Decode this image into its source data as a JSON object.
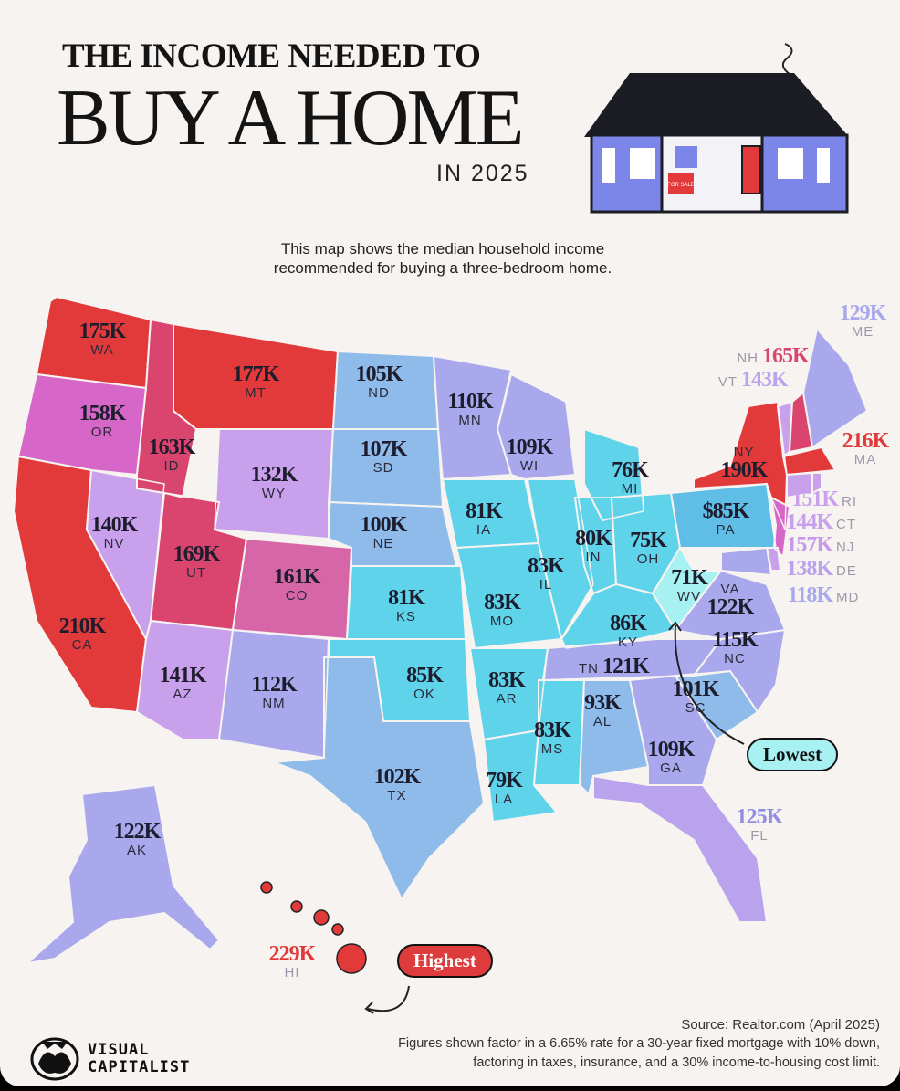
{
  "header": {
    "title_line1": "THE INCOME NEEDED TO",
    "title_line2": "BUY A HOME",
    "title_line3": "IN 2025",
    "sign_text": "FOR SALE"
  },
  "subtitle": "This map shows the median household income recommended for buying a three-bedroom home.",
  "legend_colors": {
    "highest": "#e23a3a",
    "high": "#d9456f",
    "upper_mid": "#d766c9",
    "mid": "#c9a0ec",
    "lower_mid": "#a9a8ec",
    "low": "#8fbbea",
    "lower": "#5fd3ea",
    "lowest": "#a8f1f3"
  },
  "states": [
    {
      "abbr": "WA",
      "value": "175K",
      "color": "#e23a3a"
    },
    {
      "abbr": "OR",
      "value": "158K",
      "color": "#d766c9"
    },
    {
      "abbr": "CA",
      "value": "210K",
      "color": "#e23a3a"
    },
    {
      "abbr": "NV",
      "value": "140K",
      "color": "#c9a0ec"
    },
    {
      "abbr": "ID",
      "value": "163K",
      "color": "#d9456f"
    },
    {
      "abbr": "MT",
      "value": "177K",
      "color": "#e23a3a"
    },
    {
      "abbr": "WY",
      "value": "132K",
      "color": "#c9a0ec"
    },
    {
      "abbr": "UT",
      "value": "169K",
      "color": "#d9456f"
    },
    {
      "abbr": "CO",
      "value": "161K",
      "color": "#d766a9"
    },
    {
      "abbr": "AZ",
      "value": "141K",
      "color": "#c9a0ec"
    },
    {
      "abbr": "NM",
      "value": "112K",
      "color": "#a9a8ec"
    },
    {
      "abbr": "ND",
      "value": "105K",
      "color": "#8fbbea"
    },
    {
      "abbr": "SD",
      "value": "107K",
      "color": "#8fbbea"
    },
    {
      "abbr": "NE",
      "value": "100K",
      "color": "#8fbbea"
    },
    {
      "abbr": "KS",
      "value": "81K",
      "color": "#5fd3ea"
    },
    {
      "abbr": "OK",
      "value": "85K",
      "color": "#5fd3ea"
    },
    {
      "abbr": "TX",
      "value": "102K",
      "color": "#8fbbea"
    },
    {
      "abbr": "MN",
      "value": "110K",
      "color": "#a9a8ec"
    },
    {
      "abbr": "IA",
      "value": "81K",
      "color": "#5fd3ea"
    },
    {
      "abbr": "MO",
      "value": "83K",
      "color": "#5fd3ea"
    },
    {
      "abbr": "AR",
      "value": "83K",
      "color": "#5fd3ea"
    },
    {
      "abbr": "LA",
      "value": "79K",
      "color": "#5fd3ea"
    },
    {
      "abbr": "WI",
      "value": "109K",
      "color": "#a9a8ec"
    },
    {
      "abbr": "IL",
      "value": "83K",
      "color": "#5fd3ea"
    },
    {
      "abbr": "IN",
      "value": "80K",
      "color": "#5fd3ea"
    },
    {
      "abbr": "MI",
      "value": "76K",
      "color": "#5fd3ea"
    },
    {
      "abbr": "OH",
      "value": "75K",
      "color": "#5fd3ea"
    },
    {
      "abbr": "KY",
      "value": "86K",
      "color": "#5fd3ea"
    },
    {
      "abbr": "WV",
      "value": "71K",
      "color": "#a8f1f3"
    },
    {
      "abbr": "TN",
      "value": "121K",
      "color": "#a9a8ec"
    },
    {
      "abbr": "MS",
      "value": "83K",
      "color": "#5fd3ea"
    },
    {
      "abbr": "AL",
      "value": "93K",
      "color": "#8fbbea"
    },
    {
      "abbr": "GA",
      "value": "109K",
      "color": "#a9a8ec"
    },
    {
      "abbr": "SC",
      "value": "101K",
      "color": "#8fbbea"
    },
    {
      "abbr": "NC",
      "value": "115K",
      "color": "#a9a8ec"
    },
    {
      "abbr": "VA",
      "value": "122K",
      "color": "#a9a8ec"
    },
    {
      "abbr": "FL",
      "value": "125K",
      "color": "#b9a3ec"
    },
    {
      "abbr": "PA",
      "value": "$85K",
      "color": "#5fbde6"
    },
    {
      "abbr": "NY",
      "value": "190K",
      "color": "#e23a3a"
    },
    {
      "abbr": "VT",
      "value": "143K",
      "color": "#c9a0ec"
    },
    {
      "abbr": "NH",
      "value": "165K",
      "color": "#d9456f"
    },
    {
      "abbr": "ME",
      "value": "129K",
      "color": "#a9a8ec"
    },
    {
      "abbr": "MA",
      "value": "216K",
      "color": "#e23a3a"
    },
    {
      "abbr": "RI",
      "value": "151K",
      "color": "#c9a0ec"
    },
    {
      "abbr": "CT",
      "value": "144K",
      "color": "#c9a0ec"
    },
    {
      "abbr": "NJ",
      "value": "157K",
      "color": "#d766c9"
    },
    {
      "abbr": "DE",
      "value": "138K",
      "color": "#c9a0ec"
    },
    {
      "abbr": "MD",
      "value": "118K",
      "color": "#a9a8ec"
    },
    {
      "abbr": "AK",
      "value": "122K",
      "color": "#a9a8ec"
    },
    {
      "abbr": "HI",
      "value": "229K",
      "color": "#e23a3a"
    }
  ],
  "callouts": {
    "lowest": "Lowest",
    "highest": "Highest"
  },
  "footer": {
    "source": "Source: Realtor.com (April 2025)",
    "note_line1": "Figures shown factor in a 6.65% rate for a 30-year fixed mortgage with 10% down,",
    "note_line2": "factoring in taxes, insurance, and a 30% income-to-housing cost limit.",
    "brand_line1": "VISUAL",
    "brand_line2": "CAPITALIST"
  }
}
